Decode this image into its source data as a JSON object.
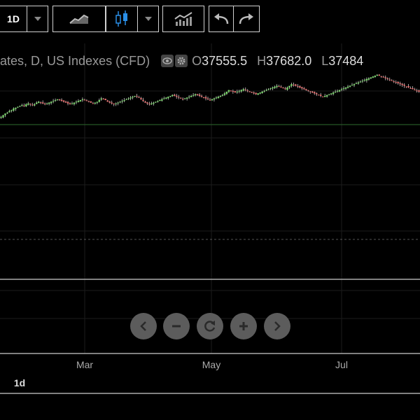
{
  "toolbar": {
    "interval_label": "1D",
    "line_chart_icon": "area-chart-icon",
    "candle_icon": "candlestick-icon",
    "indicators_icon": "indicators-icon",
    "undo_icon": "undo-icon",
    "redo_icon": "redo-icon"
  },
  "legend": {
    "title": "ates, D, US Indexes (CFD)",
    "open_label": "O",
    "open_value": "37555.5",
    "high_label": "H",
    "high_value": "37682.0",
    "low_label": "L",
    "low_value": "37484"
  },
  "axis": {
    "months": [
      "Mar",
      "May",
      "Jul"
    ]
  },
  "nav": [
    "chevron-left-icon",
    "zoom-out-icon",
    "reset-icon",
    "zoom-in-icon",
    "chevron-right-icon"
  ],
  "footer": {
    "range_label": "1d"
  },
  "colors": {
    "up": "#7ad86a",
    "down": "#e86a6a",
    "grid": "#1c1c1c",
    "baseline": "#2e6b2e"
  },
  "chart_data": {
    "type": "candlestick",
    "ylim": [
      0,
      100
    ],
    "closes": [
      40,
      42,
      44,
      45,
      47,
      48,
      50,
      51,
      52,
      53,
      54,
      53,
      55,
      56,
      55,
      54,
      55,
      57,
      58,
      57,
      56,
      55,
      56,
      57,
      58,
      59,
      60,
      61,
      60,
      59,
      58,
      57,
      56,
      55,
      56,
      57,
      58,
      59,
      60,
      61,
      60,
      59,
      58,
      57,
      56,
      57,
      58,
      60,
      62,
      61,
      60,
      58,
      57,
      56,
      55,
      56,
      57,
      58,
      59,
      60,
      61,
      62,
      63,
      64,
      65,
      64,
      63,
      61,
      59,
      57,
      56,
      55,
      56,
      57,
      58,
      59,
      60,
      61,
      62,
      63,
      64,
      65,
      66,
      65,
      64,
      63,
      62,
      61,
      62,
      63,
      64,
      65,
      66,
      67,
      66,
      65,
      64,
      63,
      62,
      61,
      60,
      61,
      62,
      63,
      64,
      65,
      66,
      68,
      70,
      72,
      71,
      70,
      69,
      70,
      71,
      72,
      73,
      72,
      71,
      70,
      69,
      68,
      67,
      68,
      69,
      70,
      71,
      72,
      73,
      74,
      75,
      76,
      77,
      76,
      75,
      74,
      73,
      75,
      77,
      79,
      78,
      77,
      76,
      75,
      74,
      73,
      72,
      71,
      70,
      69,
      68,
      67,
      66,
      65,
      64,
      65,
      66,
      67,
      68,
      69,
      70,
      71,
      72,
      73,
      74,
      75,
      76,
      77,
      78,
      79,
      80,
      81,
      82,
      83,
      84,
      85,
      86,
      87,
      88,
      89,
      90,
      89,
      88,
      87,
      86,
      85,
      84,
      83,
      82,
      81,
      80,
      79,
      78,
      77,
      76,
      75,
      74,
      73,
      72,
      71,
      70
    ]
  }
}
